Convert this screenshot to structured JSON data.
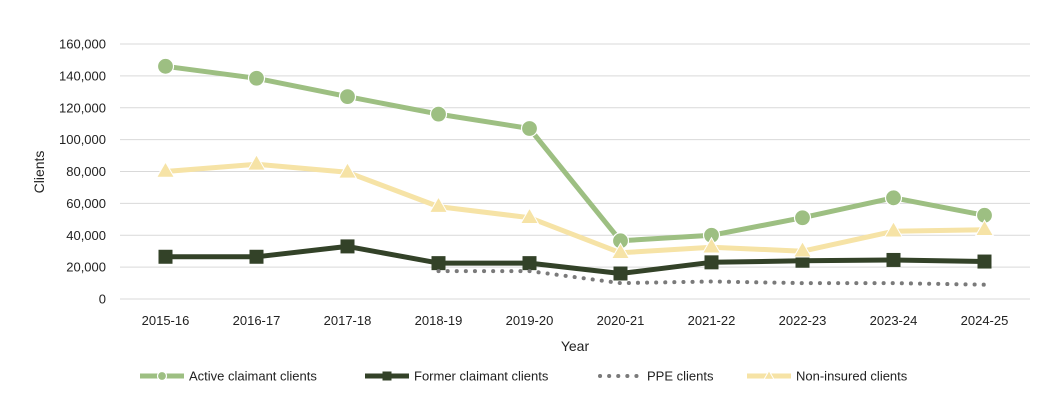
{
  "chart_data": {
    "type": "line",
    "title": "",
    "xlabel": "Year",
    "ylabel": "Clients",
    "ylim": [
      0,
      160000
    ],
    "yticks": [
      0,
      20000,
      40000,
      60000,
      80000,
      100000,
      120000,
      140000,
      160000
    ],
    "ytick_labels": [
      "0",
      "20,000",
      "40,000",
      "60,000",
      "80,000",
      "100,000",
      "120,000",
      "140,000",
      "160,000"
    ],
    "grid": "horizontal",
    "legend_position": "bottom",
    "categories": [
      "2015-16",
      "2016-17",
      "2017-18",
      "2018-19",
      "2019-20",
      "2020-21",
      "2021-22",
      "2022-23",
      "2023-24",
      "2024-25"
    ],
    "series": [
      {
        "name": "Active claimant clients",
        "color": "#9dbf82",
        "marker": "circle",
        "style": "solid",
        "values": [
          146000,
          138500,
          127000,
          116000,
          107000,
          36500,
          40000,
          51000,
          63500,
          52500
        ]
      },
      {
        "name": "Former claimant clients",
        "color": "#334228",
        "marker": "square",
        "style": "solid",
        "values": [
          26500,
          26500,
          33000,
          22500,
          22500,
          16000,
          23000,
          24000,
          24500,
          23500
        ]
      },
      {
        "name": "PPE clients",
        "color": "#7a7a7a",
        "marker": "none",
        "style": "dotted",
        "values": [
          null,
          null,
          null,
          17500,
          17500,
          10000,
          11000,
          10000,
          10000,
          9000
        ]
      },
      {
        "name": "Non-insured clients",
        "color": "#f6e3a6",
        "marker": "triangle",
        "style": "solid",
        "values": [
          80000,
          84500,
          79500,
          58000,
          51000,
          29000,
          32500,
          30000,
          42500,
          43500
        ]
      }
    ]
  }
}
